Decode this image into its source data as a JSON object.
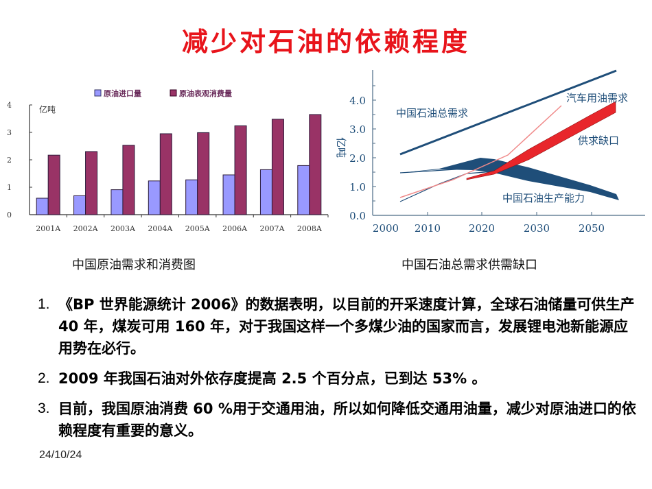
{
  "slide": {
    "title": "减少对石油的依赖程度",
    "date": "24/10/24",
    "captions": {
      "left": "中国原油需求和消费图",
      "right": "中国石油总需求供需缺口"
    },
    "points": [
      {
        "num": "1.",
        "text": "《BP 世界能源统计 2006》的数据表明，以目前的开采速度计算，全球石油储量可供生产 40 年，煤炭可用 160 年，对于我国这样一个多煤少油的国家而言，发展锂电池新能源应用势在必行。"
      },
      {
        "num": "2.",
        "text": "2009 年我国石油对外依存度提高 2.5 个百分点，已到达 53% 。"
      },
      {
        "num": "3.",
        "text": "目前，我国原油消费 60 %用于交通用油，所以如何降低交通用油量，减少对原油进口的依赖程度有重要的意义。"
      }
    ]
  },
  "chart_data": [
    {
      "type": "bar",
      "title": "",
      "unit_label": "亿吨",
      "categories": [
        "2001A",
        "2002A",
        "2003A",
        "2004A",
        "2005A",
        "2006A",
        "2007A",
        "2008A"
      ],
      "series": [
        {
          "name": "原油进口量",
          "color": "#9999ff",
          "values": [
            0.6,
            0.69,
            0.91,
            1.23,
            1.27,
            1.45,
            1.64,
            1.79
          ]
        },
        {
          "name": "原油表观消费量",
          "color": "#993366",
          "values": [
            2.17,
            2.3,
            2.53,
            2.95,
            2.99,
            3.24,
            3.48,
            3.65
          ]
        }
      ],
      "yticks": [
        "0",
        "1",
        "2",
        "3",
        "4"
      ],
      "ylim": [
        0,
        4
      ],
      "legend_position": "top",
      "grid": false
    },
    {
      "type": "line",
      "title": "",
      "ylabel": "亿吨",
      "xticks": [
        "2000",
        "2010",
        "2020",
        "2030",
        "2050"
      ],
      "yticks": [
        "0.0",
        "1.0",
        "2.0",
        "3.0",
        "4.0"
      ],
      "ylim": [
        0,
        4.0
      ],
      "grid": false,
      "series": [
        {
          "name": "中国石油总需求",
          "color": "#1f4e79",
          "x": [
            2003,
            2050
          ],
          "values": [
            2.1,
            5.0
          ]
        },
        {
          "name": "汽车用油需求",
          "color": "#f08080",
          "x": [
            2003,
            2010,
            2020,
            2030
          ],
          "values": [
            0.62,
            1.2,
            2.1,
            3.8
          ]
        },
        {
          "name": "中国石油生产能力",
          "color": "#1f4e79",
          "x": [
            2003,
            2015,
            2020,
            2030,
            2050
          ],
          "values_upper": [
            1.47,
            1.6,
            1.95,
            1.75,
            1.2
          ],
          "values_lower": [
            1.47,
            1.55,
            1.7,
            1.4,
            0.6
          ]
        },
        {
          "name": "供求缺口",
          "color": "#e8262b",
          "x": [
            2015,
            2020,
            2030,
            2050
          ],
          "values_upper": [
            1.25,
            1.6,
            2.6,
            3.9
          ],
          "values_lower": [
            1.2,
            1.45,
            2.3,
            3.55
          ]
        }
      ],
      "annotations": [
        "中国石油总需求",
        "汽车用油需求",
        "供求缺口",
        "中国石油生产能力"
      ]
    }
  ]
}
